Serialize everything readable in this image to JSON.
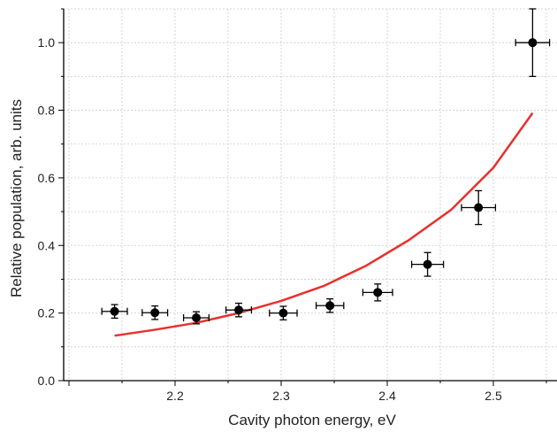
{
  "chart_data": {
    "type": "scatter",
    "title": "",
    "xlabel": "Cavity photon energy, eV",
    "ylabel": "Relative population, arb. units",
    "xlim": [
      2.095,
      2.56
    ],
    "ylim": [
      0.0,
      1.1
    ],
    "x_ticks": [
      2.2,
      2.3,
      2.4,
      2.5
    ],
    "x_tick_labels": [
      "2.2",
      "2.3",
      "2.4",
      "2.5"
    ],
    "y_ticks": [
      0.0,
      0.2,
      0.4,
      0.6,
      0.8,
      1.0
    ],
    "y_tick_labels": [
      "0.0",
      "0.2",
      "0.4",
      "0.6",
      "0.8",
      "1.0"
    ],
    "grid": true,
    "grid_color": "#cccccc",
    "series": [
      {
        "kind": "points_with_errorbars",
        "color": "#000000",
        "points": [
          {
            "x": 2.143,
            "y": 0.205,
            "xerr": 0.012,
            "yerr": 0.02
          },
          {
            "x": 2.181,
            "y": 0.201,
            "xerr": 0.012,
            "yerr": 0.02
          },
          {
            "x": 2.22,
            "y": 0.186,
            "xerr": 0.012,
            "yerr": 0.018
          },
          {
            "x": 2.26,
            "y": 0.209,
            "xerr": 0.012,
            "yerr": 0.02
          },
          {
            "x": 2.302,
            "y": 0.2,
            "xerr": 0.013,
            "yerr": 0.02
          },
          {
            "x": 2.346,
            "y": 0.222,
            "xerr": 0.013,
            "yerr": 0.02
          },
          {
            "x": 2.391,
            "y": 0.261,
            "xerr": 0.014,
            "yerr": 0.025
          },
          {
            "x": 2.438,
            "y": 0.344,
            "xerr": 0.015,
            "yerr": 0.035
          },
          {
            "x": 2.486,
            "y": 0.512,
            "xerr": 0.016,
            "yerr": 0.05
          },
          {
            "x": 2.537,
            "y": 1.0,
            "xerr": 0.016,
            "yerr": 0.1
          }
        ]
      },
      {
        "kind": "line",
        "color": "#e8302c",
        "points": [
          {
            "x": 2.143,
            "y": 0.133
          },
          {
            "x": 2.18,
            "y": 0.15
          },
          {
            "x": 2.22,
            "y": 0.171
          },
          {
            "x": 2.26,
            "y": 0.2
          },
          {
            "x": 2.3,
            "y": 0.236
          },
          {
            "x": 2.34,
            "y": 0.28
          },
          {
            "x": 2.38,
            "y": 0.34
          },
          {
            "x": 2.42,
            "y": 0.415
          },
          {
            "x": 2.46,
            "y": 0.505
          },
          {
            "x": 2.5,
            "y": 0.63
          },
          {
            "x": 2.537,
            "y": 0.792
          }
        ]
      }
    ]
  }
}
